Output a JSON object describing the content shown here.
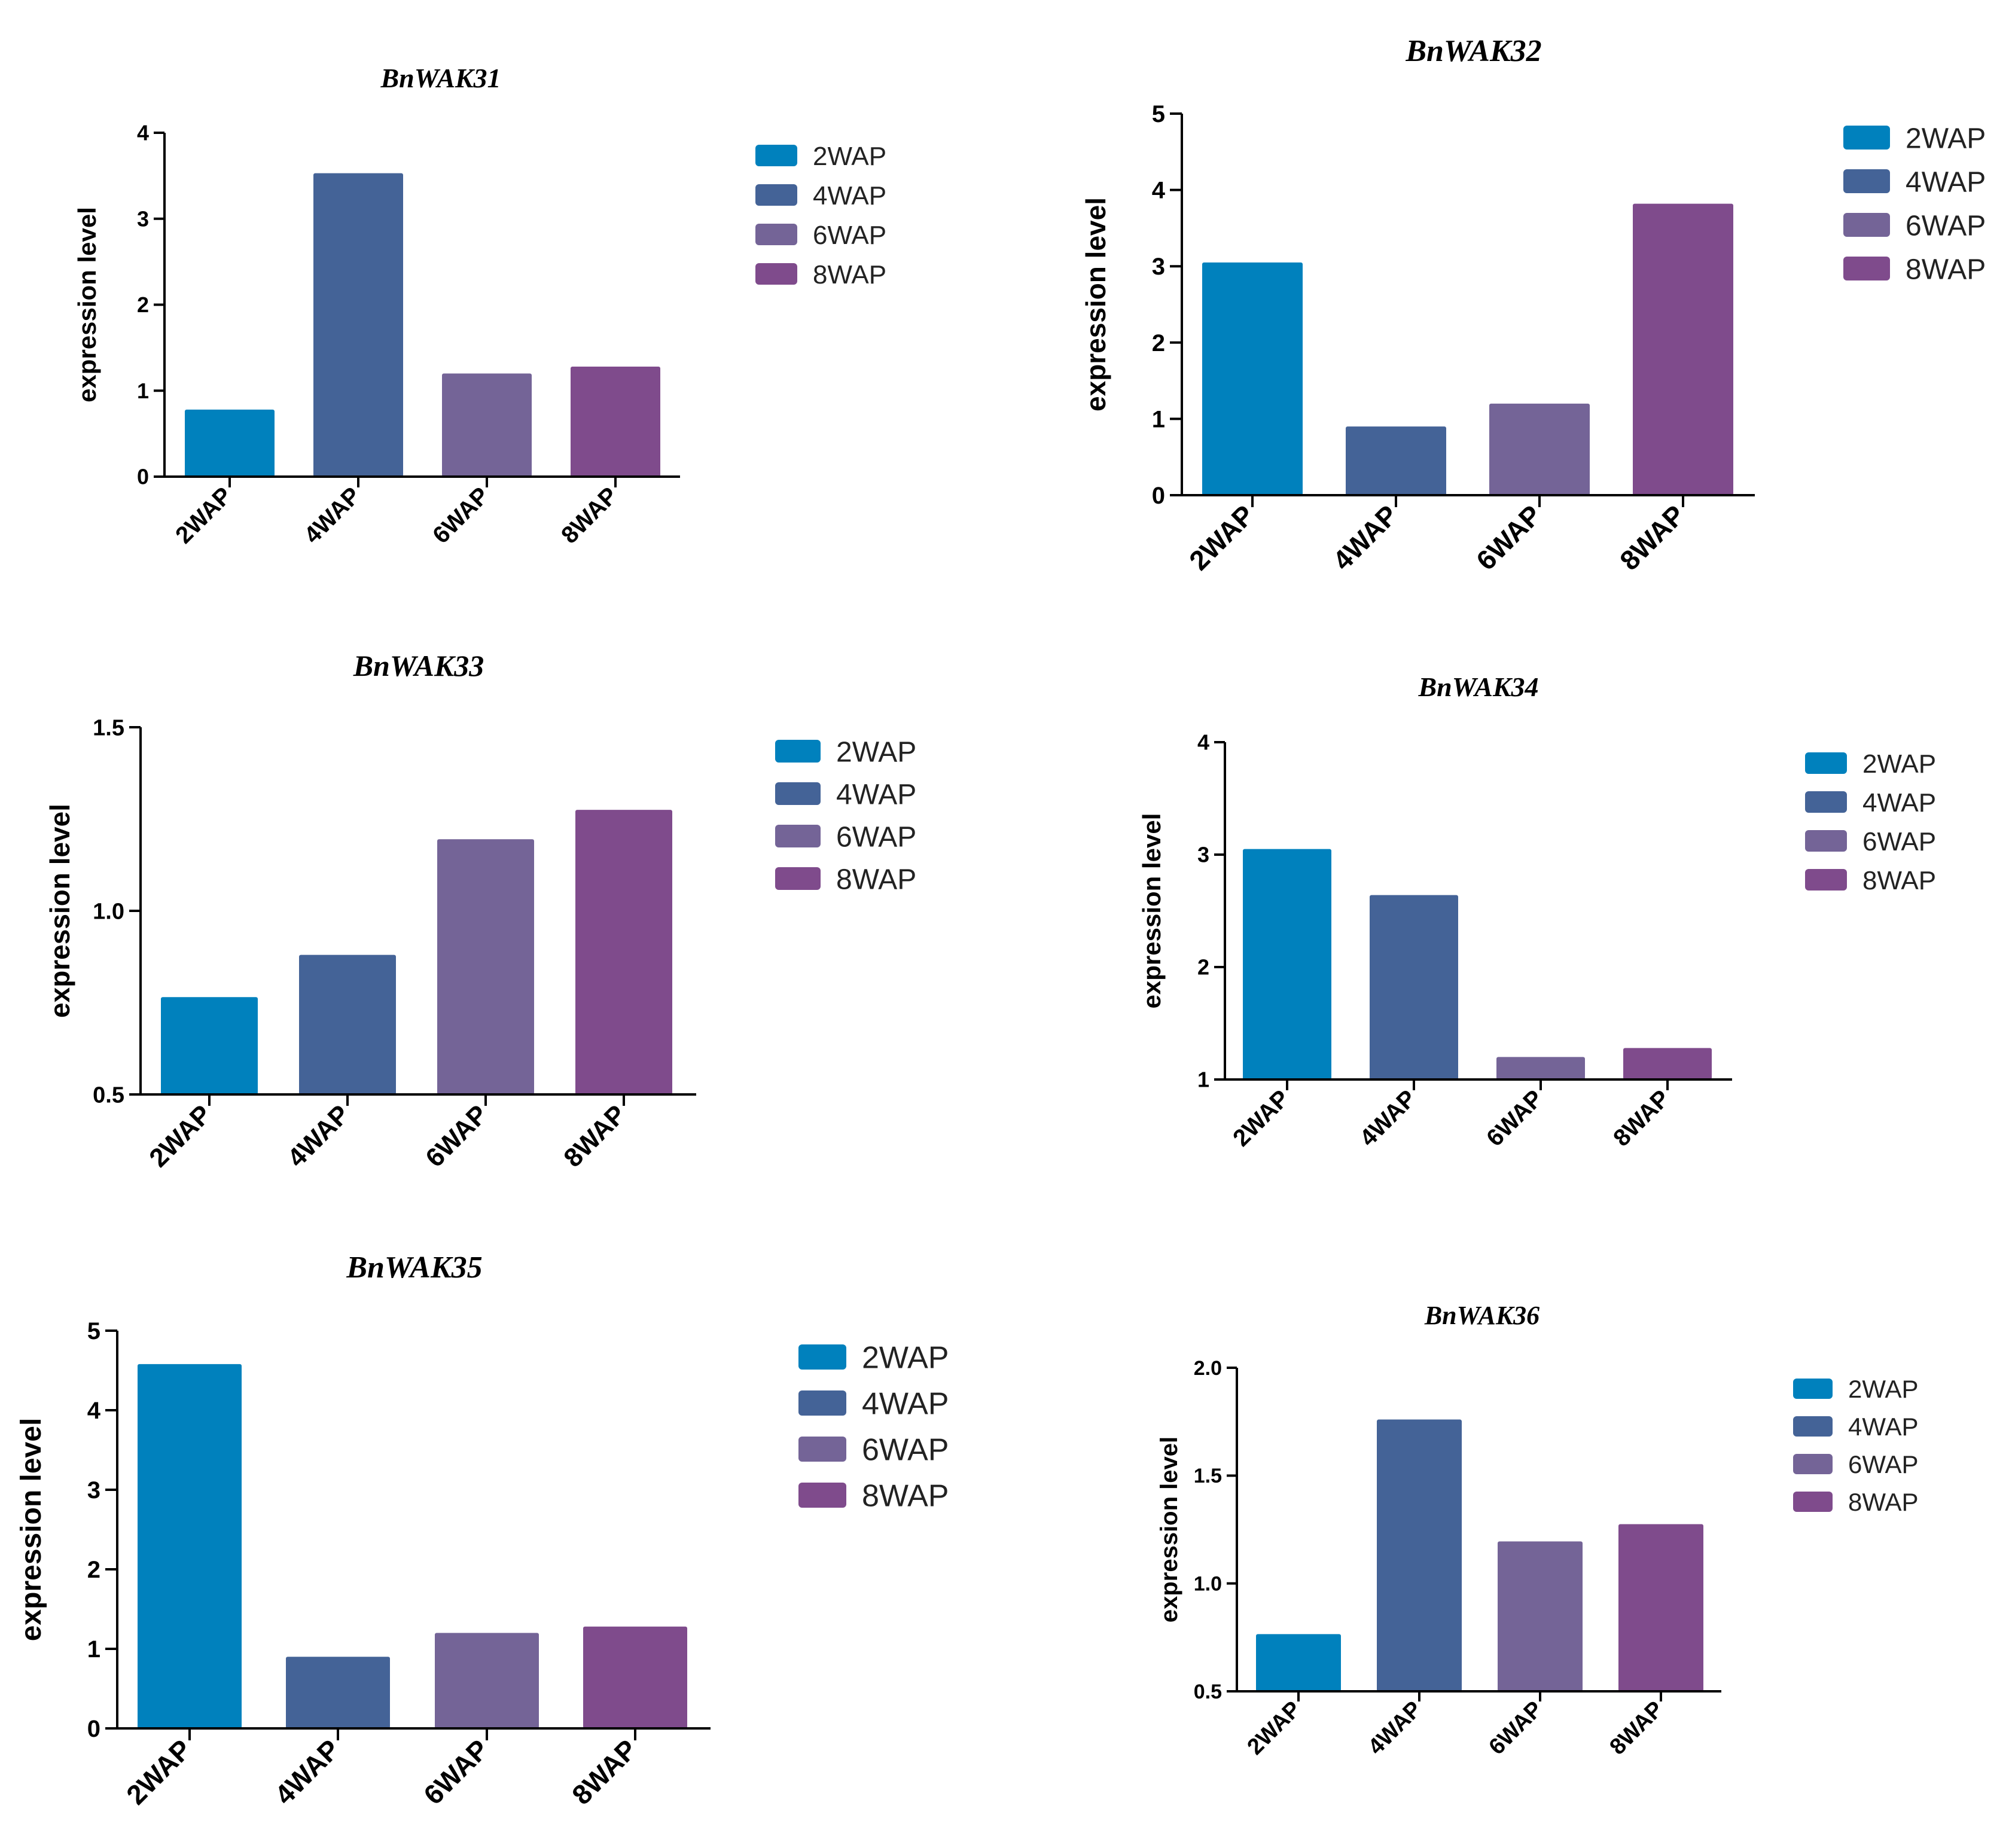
{
  "colors": {
    "2WAP": "#0081BD",
    "4WAP": "#446397",
    "6WAP": "#746497",
    "8WAP": "#7F4B8C",
    "axis": "#000000"
  },
  "chart_data": [
    {
      "type": "bar",
      "title": "BnWAK31",
      "ylabel": "expression level",
      "xlabel": "",
      "categories": [
        "2WAP",
        "4WAP",
        "6WAP",
        "8WAP"
      ],
      "values": [
        0.78,
        3.53,
        1.2,
        1.28
      ],
      "ylim": [
        0,
        4
      ],
      "yticks": [
        "0",
        "1",
        "2",
        "3",
        "4"
      ],
      "legend": [
        "2WAP",
        "4WAP",
        "6WAP",
        "8WAP"
      ],
      "legend_position": "right"
    },
    {
      "type": "bar",
      "title": "BnWAK32",
      "ylabel": "expression level",
      "xlabel": "",
      "categories": [
        "2WAP",
        "4WAP",
        "6WAP",
        "8WAP"
      ],
      "values": [
        3.05,
        0.9,
        1.2,
        3.82
      ],
      "ylim": [
        0,
        5
      ],
      "yticks": [
        "0",
        "1",
        "2",
        "3",
        "4",
        "5"
      ],
      "legend": [
        "2WAP",
        "4WAP",
        "6WAP",
        "8WAP"
      ],
      "legend_position": "right"
    },
    {
      "type": "bar",
      "title": "BnWAK33",
      "ylabel": "expression level",
      "xlabel": "",
      "categories": [
        "2WAP",
        "4WAP",
        "6WAP",
        "8WAP"
      ],
      "values": [
        0.765,
        0.88,
        1.195,
        1.275
      ],
      "ylim": [
        0.5,
        1.5
      ],
      "yticks": [
        "0.5",
        "1.0",
        "1.5"
      ],
      "legend": [
        "2WAP",
        "4WAP",
        "6WAP",
        "8WAP"
      ],
      "legend_position": "right"
    },
    {
      "type": "bar",
      "title": "BnWAK34",
      "ylabel": "expression level",
      "xlabel": "",
      "categories": [
        "2WAP",
        "4WAP",
        "6WAP",
        "8WAP"
      ],
      "values": [
        3.05,
        2.64,
        1.2,
        1.28
      ],
      "ylim": [
        1,
        4
      ],
      "yticks": [
        "1",
        "2",
        "3",
        "4"
      ],
      "legend": [
        "2WAP",
        "4WAP",
        "6WAP",
        "8WAP"
      ],
      "legend_position": "right"
    },
    {
      "type": "bar",
      "title": "BnWAK35",
      "ylabel": "expression level",
      "xlabel": "",
      "categories": [
        "2WAP",
        "4WAP",
        "6WAP",
        "8WAP"
      ],
      "values": [
        4.58,
        0.9,
        1.2,
        1.28
      ],
      "ylim": [
        0,
        5
      ],
      "yticks": [
        "0",
        "1",
        "2",
        "3",
        "4",
        "5"
      ],
      "legend": [
        "2WAP",
        "4WAP",
        "6WAP",
        "8WAP"
      ],
      "legend_position": "right"
    },
    {
      "type": "bar",
      "title": "BnWAK36",
      "ylabel": "expression level",
      "xlabel": "",
      "categories": [
        "2WAP",
        "4WAP",
        "6WAP",
        "8WAP"
      ],
      "values": [
        0.765,
        1.76,
        1.195,
        1.275
      ],
      "ylim": [
        0.5,
        2.0
      ],
      "yticks": [
        "0.5",
        "1.0",
        "1.5",
        "2.0"
      ],
      "legend": [
        "2WAP",
        "4WAP",
        "6WAP",
        "8WAP"
      ],
      "legend_position": "right"
    }
  ]
}
